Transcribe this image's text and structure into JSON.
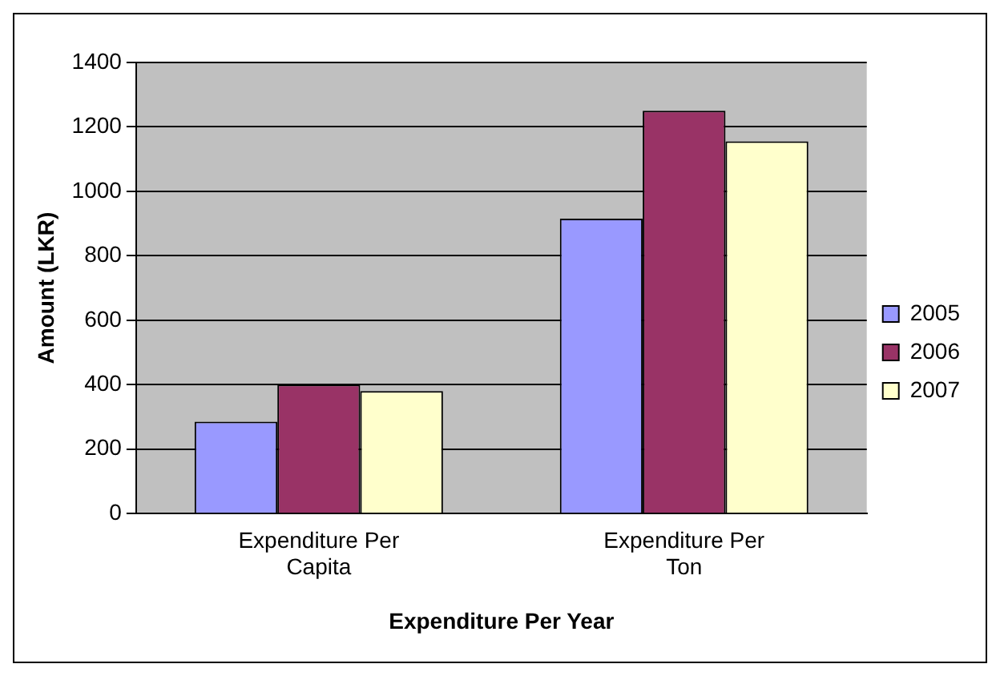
{
  "chart_data": {
    "type": "bar",
    "xlabel": "Expenditure Per Year",
    "ylabel": "Amount (LKR)",
    "categories": [
      "Expenditure Per Capita",
      "Expenditure Per Ton"
    ],
    "series": [
      {
        "name": "2005",
        "color": "#9999ff",
        "values": [
          285,
          915
        ]
      },
      {
        "name": "2006",
        "color": "#993366",
        "values": [
          400,
          1250
        ]
      },
      {
        "name": "2007",
        "color": "#ffffcc",
        "values": [
          380,
          1155
        ]
      }
    ],
    "ylim": [
      0,
      1400
    ],
    "yticks": [
      0,
      200,
      400,
      600,
      800,
      1000,
      1200,
      1400
    ],
    "grid": "y",
    "legend": "right"
  }
}
